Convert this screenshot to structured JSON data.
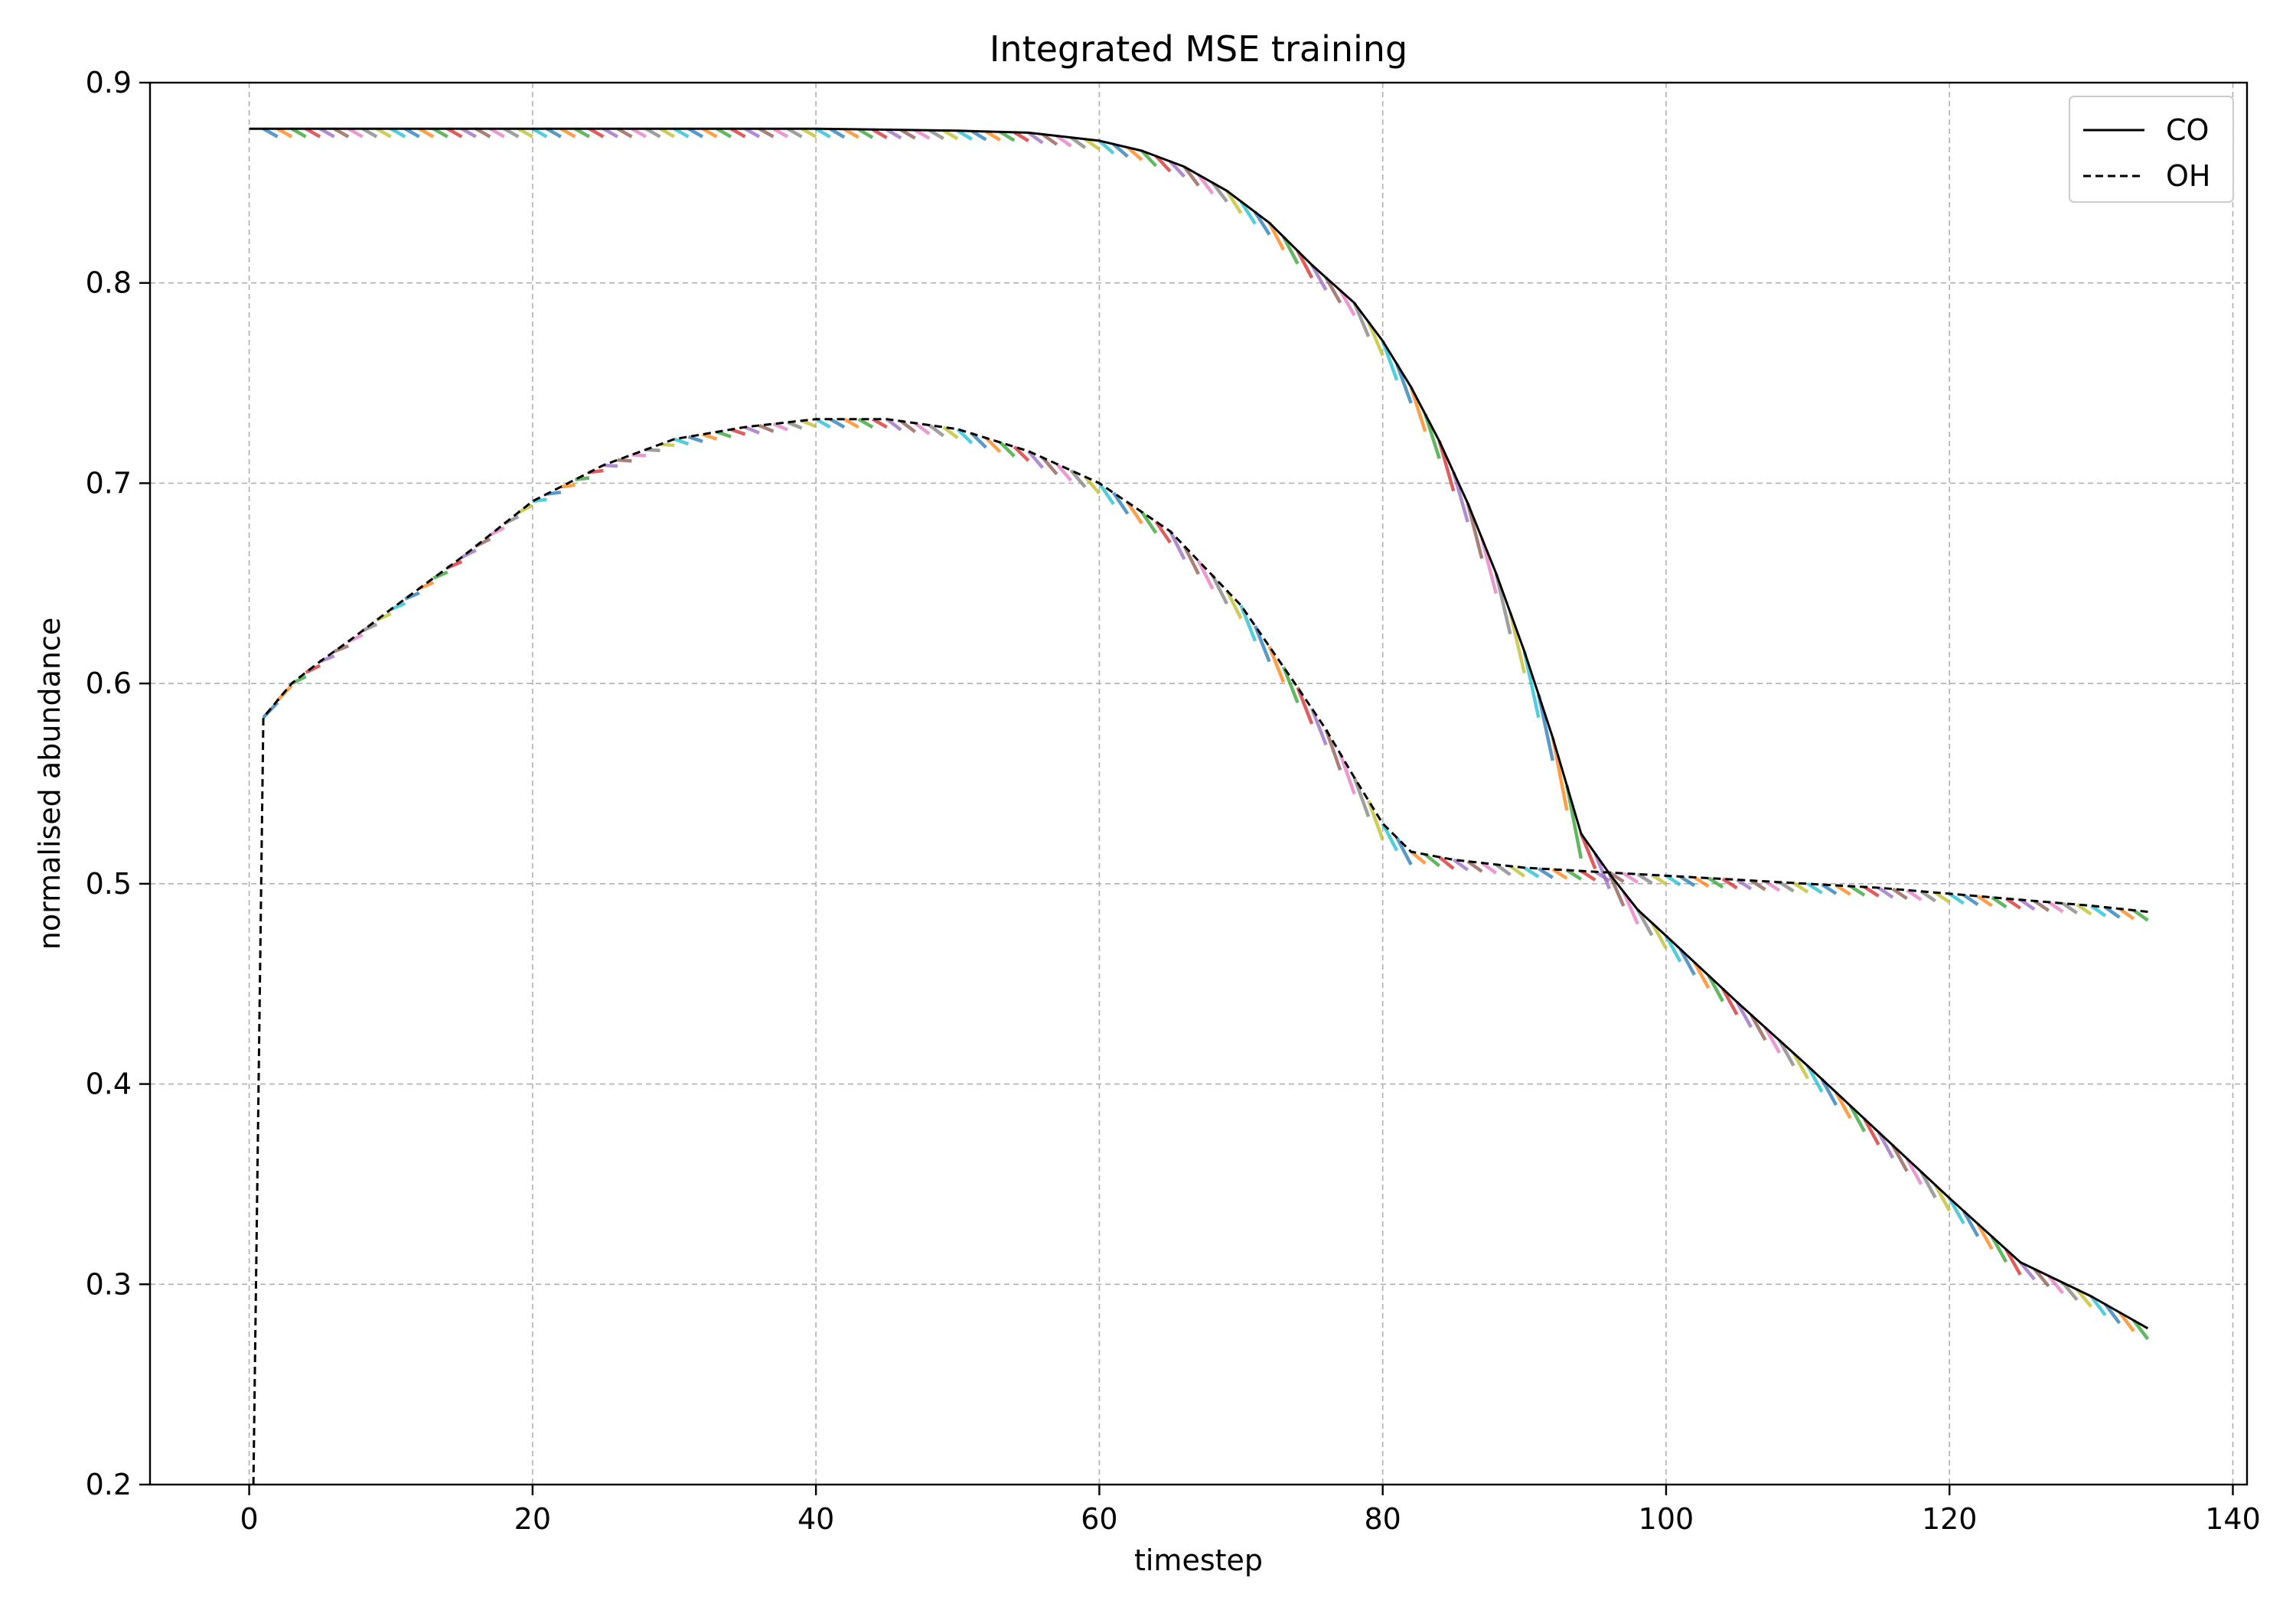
{
  "chart_data": {
    "type": "line",
    "title": "Integrated MSE training",
    "xlabel": "timestep",
    "ylabel": "normalised abundance",
    "xlim": [
      -7,
      141
    ],
    "ylim": [
      0.2,
      0.9
    ],
    "xticks": [
      0,
      20,
      40,
      60,
      80,
      100,
      120,
      140
    ],
    "yticks": [
      0.2,
      0.3,
      0.4,
      0.5,
      0.6,
      0.7,
      0.8,
      0.9
    ],
    "grid": true,
    "legend_position": "top-right",
    "series": [
      {
        "name": "CO",
        "style": "solid",
        "color": "#000000",
        "x": [
          0,
          10,
          20,
          30,
          40,
          50,
          55,
          60,
          63,
          66,
          69,
          72,
          75,
          78,
          80,
          82,
          84,
          86,
          88,
          90,
          92,
          94,
          96,
          98,
          100,
          105,
          110,
          115,
          120,
          125,
          130,
          134
        ],
        "y": [
          0.877,
          0.877,
          0.877,
          0.877,
          0.877,
          0.876,
          0.875,
          0.871,
          0.866,
          0.858,
          0.846,
          0.83,
          0.809,
          0.79,
          0.771,
          0.748,
          0.721,
          0.69,
          0.655,
          0.616,
          0.573,
          0.525,
          0.505,
          0.487,
          0.474,
          0.441,
          0.409,
          0.376,
          0.343,
          0.311,
          0.294,
          0.278
        ]
      },
      {
        "name": "OH",
        "style": "dashed",
        "color": "#000000",
        "x": [
          0.3,
          1,
          3,
          5,
          7,
          10,
          15,
          20,
          25,
          30,
          35,
          40,
          45,
          50,
          55,
          60,
          65,
          70,
          74,
          76,
          78,
          80,
          82,
          85,
          90,
          95,
          100,
          105,
          110,
          115,
          120,
          125,
          130,
          134
        ],
        "y": [
          0.2,
          0.583,
          0.6,
          0.611,
          0.621,
          0.637,
          0.663,
          0.691,
          0.709,
          0.722,
          0.728,
          0.732,
          0.732,
          0.727,
          0.716,
          0.7,
          0.676,
          0.639,
          0.598,
          0.577,
          0.553,
          0.53,
          0.516,
          0.512,
          0.508,
          0.506,
          0.504,
          0.502,
          0.5,
          0.498,
          0.495,
          0.492,
          0.489,
          0.486
        ]
      }
    ]
  }
}
